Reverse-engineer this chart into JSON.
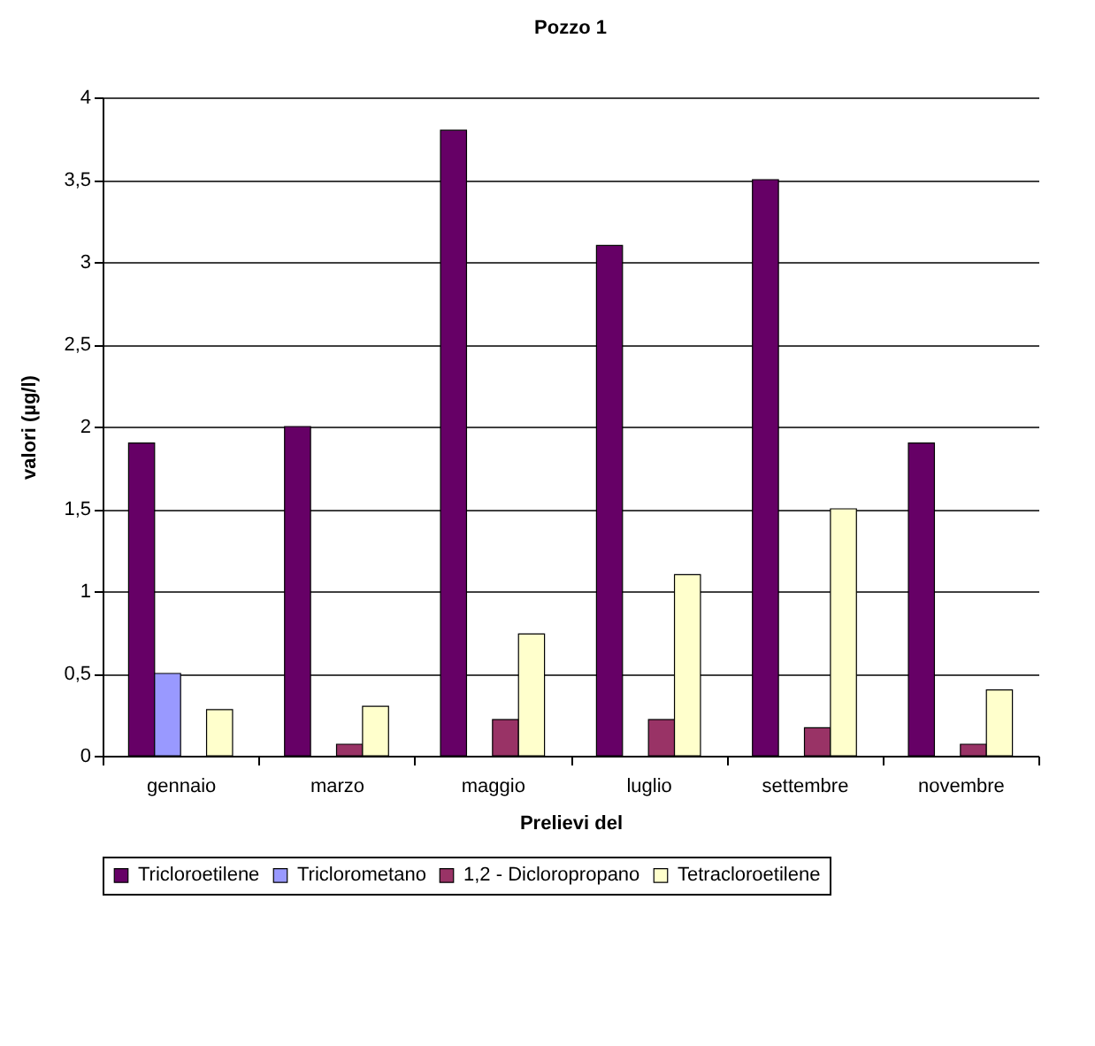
{
  "chart_data": {
    "type": "bar",
    "title": "Pozzo 1",
    "xlabel": "Prelievi del",
    "ylabel": "valori (µg/l)",
    "categories": [
      "gennaio",
      "marzo",
      "maggio",
      "luglio",
      "settembre",
      "novembre"
    ],
    "series": [
      {
        "name": "Tricloroetilene",
        "color": "#660066",
        "values": [
          1.9,
          2.0,
          3.8,
          3.1,
          3.5,
          1.9
        ]
      },
      {
        "name": "Triclorometano",
        "color": "#9999ff",
        "values": [
          0.5,
          null,
          null,
          null,
          null,
          null
        ]
      },
      {
        "name": "1,2 - Dicloropropano",
        "color": "#993366",
        "values": [
          null,
          0.07,
          0.22,
          0.22,
          0.17,
          0.07
        ]
      },
      {
        "name": "Tetracloroetilene",
        "color": "#ffffcc",
        "values": [
          0.28,
          0.3,
          0.74,
          1.1,
          1.5,
          0.4
        ]
      }
    ],
    "ylim": [
      0,
      4
    ],
    "yticks": [
      0,
      {
        "value": 0.5,
        "label": "0,5"
      },
      1,
      {
        "value": 1.5,
        "label": "1,5"
      },
      2,
      {
        "value": 2.5,
        "label": "2,5"
      },
      3,
      {
        "value": 3.5,
        "label": "3,5"
      },
      4
    ],
    "grid": "y",
    "legend": "bottom"
  }
}
